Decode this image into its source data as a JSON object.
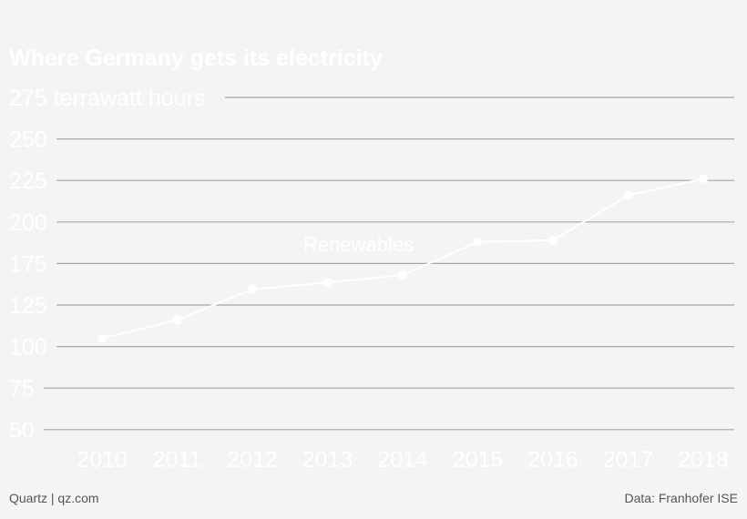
{
  "chart_data": {
    "type": "line",
    "title": "Where Germany gets its electricity",
    "y_unit": "terrawatt hours",
    "y_ticks": [
      50,
      75,
      100,
      125,
      175,
      200,
      225,
      250,
      275
    ],
    "x": [
      "2010",
      "2011",
      "2012",
      "2013",
      "2014",
      "2015",
      "2016",
      "2017",
      "2018"
    ],
    "series": [
      {
        "name": "Renewables",
        "values": [
          105,
          116,
          144,
          152,
          161,
          188,
          189,
          216,
          226
        ]
      }
    ],
    "grid": true
  },
  "footer": {
    "source": "Data: Franhofer ISE",
    "credit": "Quartz | qz.com"
  },
  "colors": {
    "background": "#f4f4f4",
    "line": "#ffffff",
    "grid": "#a6a6a6",
    "footer_text": "#555555"
  }
}
